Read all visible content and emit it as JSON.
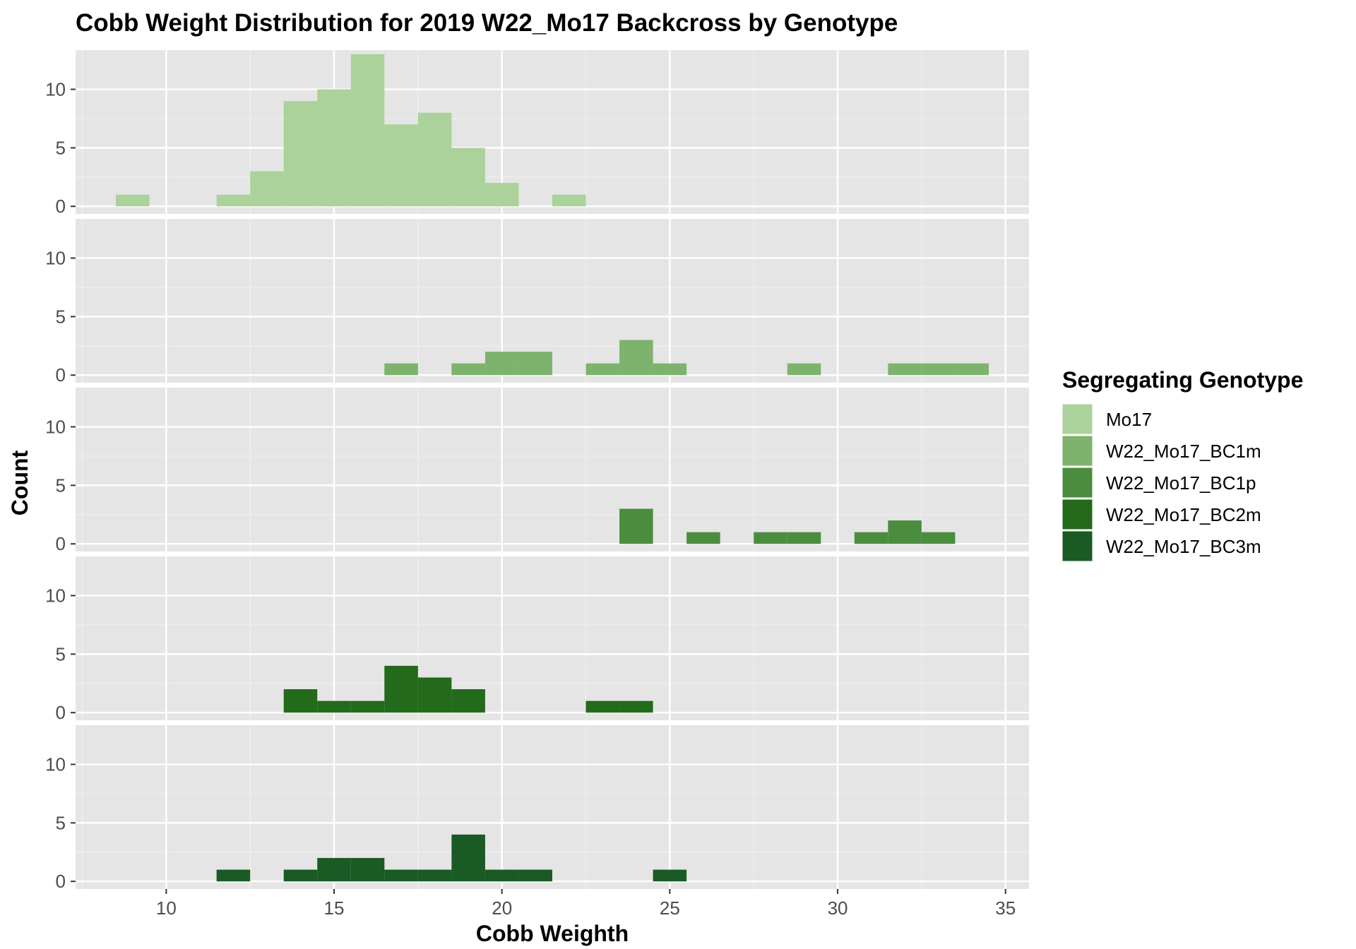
{
  "chart_data": {
    "type": "bar",
    "subtype": "faceted-histogram",
    "title": "Cobb Weight Distribution for 2019 W22_Mo17 Backcross by Genotype",
    "xlabel": "Cobb Weighth",
    "ylabel": "Count",
    "xlim": [
      7.3,
      35.7
    ],
    "ylim": [
      -0.65,
      13.35
    ],
    "x_ticks": [
      10,
      15,
      20,
      25,
      30,
      35
    ],
    "y_ticks": [
      0,
      5,
      10
    ],
    "bin_width": 1,
    "grid": true,
    "legend": {
      "title": "Segregating Genotype",
      "placement": "right"
    },
    "series": [
      {
        "name": "Mo17",
        "color": "#abd29a",
        "bins": [
          [
            9,
            1
          ],
          [
            12,
            1
          ],
          [
            13,
            3
          ],
          [
            14,
            9
          ],
          [
            15,
            10
          ],
          [
            16,
            13
          ],
          [
            17,
            7
          ],
          [
            18,
            8
          ],
          [
            19,
            5
          ],
          [
            20,
            2
          ],
          [
            22,
            1
          ]
        ]
      },
      {
        "name": "W22_Mo17_BC1m",
        "color": "#7db36c",
        "bins": [
          [
            17,
            1
          ],
          [
            19,
            1
          ],
          [
            20,
            2
          ],
          [
            21,
            2
          ],
          [
            23,
            1
          ],
          [
            24,
            3
          ],
          [
            25,
            1
          ],
          [
            29,
            1
          ],
          [
            32,
            1
          ],
          [
            33,
            1
          ],
          [
            34,
            1
          ]
        ]
      },
      {
        "name": "W22_Mo17_BC1p",
        "color": "#4b8d3f",
        "bins": [
          [
            24,
            3
          ],
          [
            26,
            1
          ],
          [
            28,
            1
          ],
          [
            29,
            1
          ],
          [
            31,
            1
          ],
          [
            32,
            2
          ],
          [
            33,
            1
          ]
        ]
      },
      {
        "name": "W22_Mo17_BC2m",
        "color": "#236a1b",
        "bins": [
          [
            14,
            2
          ],
          [
            15,
            1
          ],
          [
            16,
            1
          ],
          [
            17,
            4
          ],
          [
            18,
            3
          ],
          [
            19,
            2
          ],
          [
            23,
            1
          ],
          [
            24,
            1
          ]
        ]
      },
      {
        "name": "W22_Mo17_BC3m",
        "color": "#1a5a24",
        "bins": [
          [
            12,
            1
          ],
          [
            14,
            1
          ],
          [
            15,
            2
          ],
          [
            16,
            2
          ],
          [
            17,
            1
          ],
          [
            18,
            1
          ],
          [
            19,
            4
          ],
          [
            20,
            1
          ],
          [
            21,
            1
          ],
          [
            25,
            1
          ]
        ]
      }
    ]
  }
}
